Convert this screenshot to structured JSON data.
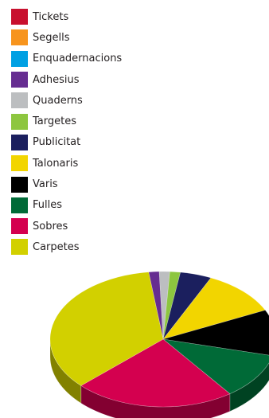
{
  "chart_data": {
    "type": "pie",
    "title": "",
    "legend_position": "top-left",
    "series": [
      {
        "name": "Tickets",
        "value": 0,
        "color": "#c8102e"
      },
      {
        "name": "Segells",
        "value": 0,
        "color": "#f7941d"
      },
      {
        "name": "Enquadernacions",
        "value": 0,
        "color": "#00a0e3"
      },
      {
        "name": "Adhesius",
        "value": 1.5,
        "color": "#662d91"
      },
      {
        "name": "Quaderns",
        "value": 1.5,
        "color": "#bcbec0"
      },
      {
        "name": "Targetes",
        "value": 1.5,
        "color": "#8dc63f"
      },
      {
        "name": "Publicitat",
        "value": 4.5,
        "color": "#1b1f5e"
      },
      {
        "name": "Talonaris",
        "value": 11,
        "color": "#f2d500"
      },
      {
        "name": "Varis",
        "value": 11,
        "color": "#000000"
      },
      {
        "name": "Fulles",
        "value": 11,
        "color": "#006a37"
      },
      {
        "name": "Sobres",
        "value": 23,
        "color": "#d4004f"
      },
      {
        "name": "Carpetes",
        "value": 35,
        "color": "#d2d000"
      }
    ]
  }
}
